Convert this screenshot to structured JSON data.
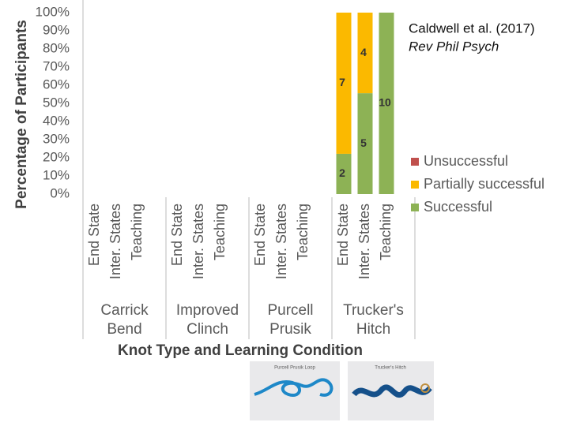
{
  "chart_data": {
    "type": "stacked_bar",
    "ylabel": "Percentage of Participants",
    "xlabel": "Knot Type and Learning Condition",
    "groups": [
      [
        "Carrick",
        "Bend"
      ],
      [
        "Improved",
        "Clinch"
      ],
      [
        "Purcell",
        "Prusik"
      ],
      [
        "Trucker's",
        "Hitch"
      ]
    ],
    "categories": [
      "End State",
      "Inter. States",
      "Teaching",
      "End State",
      "Inter. States",
      "Teaching",
      "End State",
      "Inter. States",
      "Teaching",
      "End State",
      "Inter. States",
      "Teaching"
    ],
    "series": [
      {
        "name": "Successful",
        "color": "#8db255",
        "values": [
          null,
          null,
          null,
          null,
          null,
          null,
          null,
          null,
          null,
          22.2,
          55.6,
          100
        ],
        "counts": [
          null,
          null,
          null,
          null,
          null,
          null,
          null,
          null,
          null,
          2,
          5,
          10
        ]
      },
      {
        "name": "Partially successful",
        "color": "#fbb900",
        "values": [
          null,
          null,
          null,
          null,
          null,
          null,
          null,
          null,
          null,
          77.8,
          44.4,
          null
        ],
        "counts": [
          null,
          null,
          null,
          null,
          null,
          null,
          null,
          null,
          null,
          7,
          4,
          null
        ]
      },
      {
        "name": "Unsuccessful",
        "color": "#c0504d",
        "values": [
          null,
          null,
          null,
          null,
          null,
          null,
          null,
          null,
          null,
          null,
          null,
          null
        ],
        "counts": [
          null,
          null,
          null,
          null,
          null,
          null,
          null,
          null,
          null,
          null,
          null,
          null
        ]
      }
    ],
    "ylim": [
      0,
      100
    ],
    "yticks": [
      {
        "value": 0,
        "label": "0%"
      },
      {
        "value": 10,
        "label": "10%"
      },
      {
        "value": 20,
        "label": "20%"
      },
      {
        "value": 30,
        "label": "30%"
      },
      {
        "value": 40,
        "label": "40%"
      },
      {
        "value": 50,
        "label": "50%"
      },
      {
        "value": 60,
        "label": "60%"
      },
      {
        "value": 70,
        "label": "70%"
      },
      {
        "value": 80,
        "label": "80%"
      },
      {
        "value": 90,
        "label": "90%"
      },
      {
        "value": 100,
        "label": "100%"
      }
    ],
    "legend": "right",
    "annotation": [
      "Caldwell et al. (2017)",
      "Rev Phil Psych"
    ],
    "images": [
      "Purcell Prusik Loop",
      "Trucker's Hitch"
    ]
  }
}
